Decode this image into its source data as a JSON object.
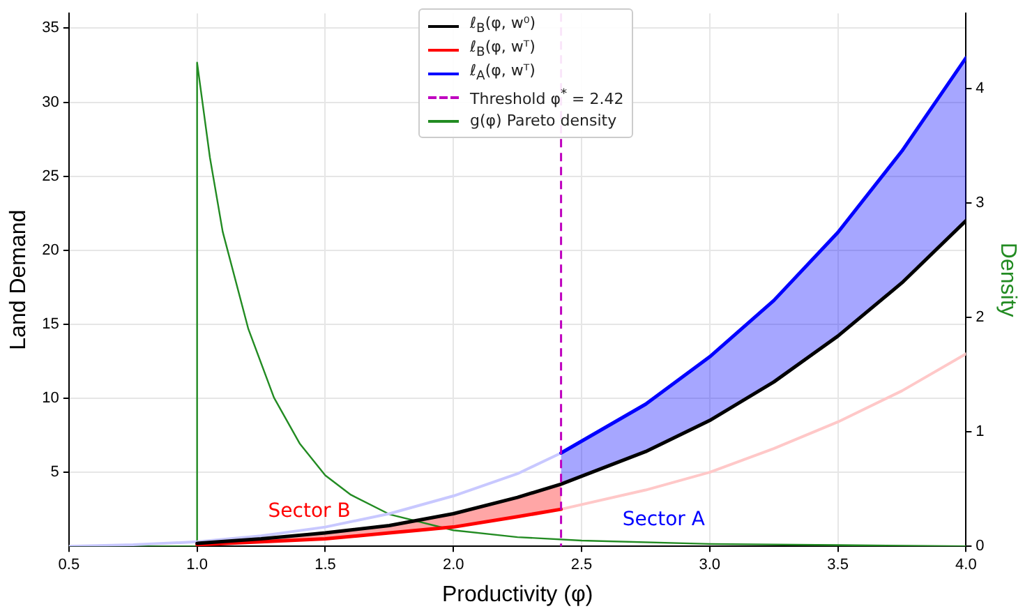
{
  "chart_data": {
    "type": "line",
    "xlabel": "Productivity (φ)",
    "ylabel": "Land Demand",
    "y2label": "Density",
    "xlim": [
      0.5,
      4.0
    ],
    "xticks": [
      {
        "value": 0.5,
        "label": "0.5"
      },
      {
        "value": 1,
        "label": "1.0"
      },
      {
        "value": 1.5,
        "label": "1.5"
      },
      {
        "value": 2,
        "label": "2.0"
      },
      {
        "value": 2.5,
        "label": "2.5"
      },
      {
        "value": 3,
        "label": "3.0"
      },
      {
        "value": 3.5,
        "label": "3.5"
      },
      {
        "value": 4,
        "label": "4.0"
      }
    ],
    "ylim": [
      0,
      36
    ],
    "yticks": [
      5,
      10,
      15,
      20,
      25,
      30,
      35
    ],
    "y2lim": [
      0,
      4.66
    ],
    "y2ticks": [
      0,
      1,
      2,
      3,
      4
    ],
    "grid": true,
    "legend": "top",
    "marker": "none",
    "line_style": "solid",
    "series": [
      {
        "name": "ℓ$_{B}$(φ, w⁰)",
        "color": "#000000",
        "x": [
          1,
          1.25,
          1.5,
          1.75,
          2,
          2.25,
          2.42,
          2.75,
          3,
          3.25,
          3.5,
          3.75,
          4
        ],
        "values": [
          0.2,
          0.5,
          0.9,
          1.4,
          2.2,
          3.3,
          4.2,
          6.4,
          8.5,
          11.1,
          14.2,
          17.8,
          22
        ]
      },
      {
        "name": "ℓ$_{B}$(φ, wᵀ)",
        "color": "#ff0000",
        "x": [
          1,
          1.25,
          1.5,
          1.75,
          2,
          2.25,
          2.42
        ],
        "values": [
          0.1,
          0.3,
          0.5,
          0.9,
          1.3,
          2,
          2.5
        ],
        "lower": [
          0.1,
          0.3,
          0.5,
          0.9,
          1.3,
          2,
          2.5
        ],
        "upper": [
          0.2,
          0.5,
          0.9,
          1.4,
          2.2,
          3.3,
          4.2
        ]
      },
      {
        "color": "#ffc8c8",
        "x": [
          2.42,
          2.75,
          3,
          3.25,
          3.5,
          3.75,
          4
        ],
        "values": [
          2.5,
          3.8,
          5.0,
          6.6,
          8.4,
          10.5,
          13
        ]
      },
      {
        "name": "ℓ$_{A}$(φ, wᵀ)",
        "color": "#0000ff",
        "x": [
          2.42,
          2.75,
          3,
          3.25,
          3.5,
          3.75,
          4
        ],
        "values": [
          6.3,
          9.6,
          12.8,
          16.6,
          21.2,
          26.7,
          33
        ],
        "lower": [
          4.2,
          6.4,
          8.5,
          11.1,
          14.2,
          17.8,
          22
        ],
        "upper": [
          6.3,
          9.6,
          12.8,
          16.6,
          21.2,
          26.7,
          33
        ]
      },
      {
        "color": "#c8c8ff",
        "x": [
          0.5,
          0.75,
          1,
          1.25,
          1.5,
          1.75,
          2,
          2.25,
          2.42
        ],
        "values": [
          0,
          0.1,
          0.3,
          0.7,
          1.3,
          2.2,
          3.4,
          4.9,
          6.3
        ]
      },
      {
        "name": "g(φ) Pareto density",
        "color": "#228b22",
        "axis": "y2",
        "x": [
          0.5,
          1,
          1,
          1.05,
          1.1,
          1.2,
          1.3,
          1.4,
          1.5,
          1.6,
          1.75,
          2,
          2.25,
          2.5,
          3,
          3.5,
          4
        ],
        "values": [
          0,
          0,
          4.23,
          3.4,
          2.75,
          1.9,
          1.3,
          0.9,
          0.62,
          0.45,
          0.28,
          0.14,
          0.08,
          0.05,
          0.02,
          0.01,
          0
        ]
      }
    ],
    "ref_lines": [
      {
        "axis": "x",
        "value": 2.42,
        "label": "Threshold φ$^{*}$ = 2.42",
        "color": "#bf00bf",
        "line_style": "dashed"
      }
    ],
    "annotations": [
      "Sector B",
      "Sector A"
    ]
  }
}
